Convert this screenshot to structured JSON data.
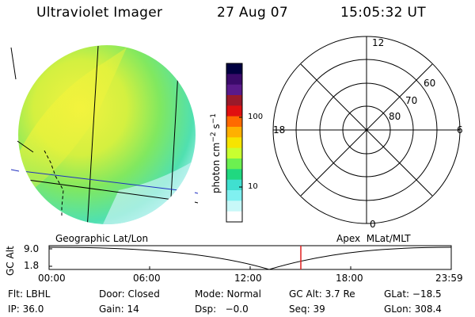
{
  "header": {
    "instrument": "Ultraviolet Imager",
    "date": "27 Aug 07",
    "time": "15:05:32 UT"
  },
  "colorbar": {
    "unit_label": "photon cm",
    "unit_exp_a": "−2",
    "unit_mid": "s",
    "unit_exp_b": "−1",
    "tick_100": "100",
    "tick_10": "10",
    "colors": [
      "#000040",
      "#3a0a6a",
      "#5a1a8a",
      "#9a1a2a",
      "#e01010",
      "#ff6a00",
      "#ffb000",
      "#f6e400",
      "#c8ff30",
      "#6cf050",
      "#20d880",
      "#40e0d0",
      "#80f0f0",
      "#c8f8f8",
      "#ffffff"
    ]
  },
  "polar_grid": {
    "mlt_labels": {
      "top": "12",
      "right": "6",
      "bottom": "0",
      "left": "18"
    },
    "lat_labels": [
      "60",
      "70",
      "80"
    ]
  },
  "image_panel": {
    "projection_label": "Geographic Lat/Lon"
  },
  "polar_panel": {
    "projection_label": "Apex  MLat/MLT"
  },
  "altitude_plot": {
    "ylabel": "GC Alt",
    "y_ticks": [
      "9.0",
      "1.8"
    ],
    "x_ticks": [
      "00:00",
      "06:00",
      "12:00",
      "18:00",
      "23:59"
    ],
    "current_marker_color": "#e02020"
  },
  "status": {
    "filter": "Flt: LBHL",
    "ip": "IP: 36.0",
    "door": "Door: Closed",
    "gain": "Gain: 14",
    "mode": "Mode: Normal",
    "dsp": "Dsp:   −0.0",
    "gc_alt": "GC Alt: 3.7 Re",
    "seq": "Seq: 39",
    "glat": "GLat: −18.5",
    "glon": "GLon: 308.4"
  }
}
